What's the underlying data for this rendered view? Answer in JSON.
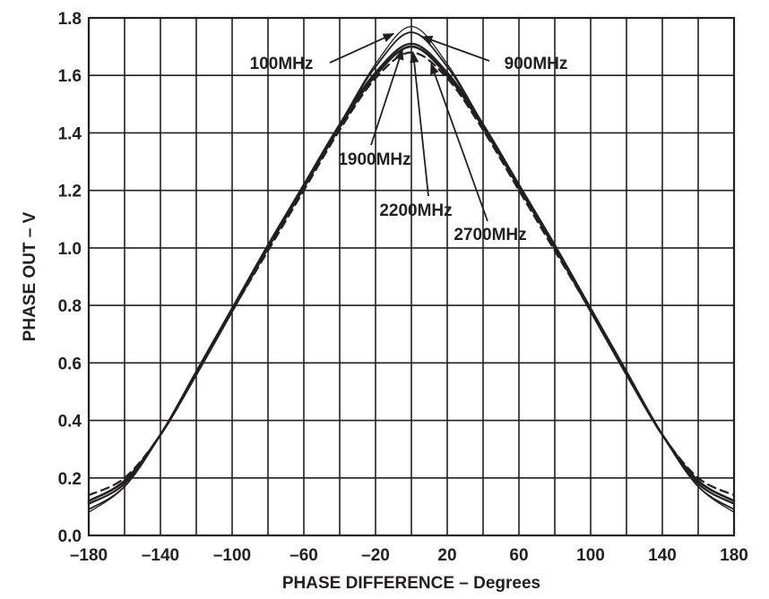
{
  "chart_data": {
    "type": "line",
    "title": "",
    "xlabel": "PHASE DIFFERENCE – Degrees",
    "ylabel": "PHASE OUT – V",
    "xlim": [
      -180,
      180
    ],
    "ylim": [
      0.0,
      1.8
    ],
    "x_ticks": [
      -180,
      -140,
      -100,
      -60,
      -20,
      20,
      60,
      100,
      140,
      180
    ],
    "x_tick_labels": [
      "–180",
      "–140",
      "–100",
      "–60",
      "–20",
      "20",
      "60",
      "100",
      "140",
      "180"
    ],
    "y_ticks": [
      0.0,
      0.2,
      0.4,
      0.6,
      0.8,
      1.0,
      1.2,
      1.4,
      1.6,
      1.8
    ],
    "y_tick_labels": [
      "0.0",
      "0.2",
      "0.4",
      "0.6",
      "0.8",
      "1.0",
      "1.2",
      "1.4",
      "1.6",
      "1.8"
    ],
    "grid": true,
    "x": [
      -180,
      -160,
      -140,
      -120,
      -100,
      -80,
      -60,
      -40,
      -20,
      0,
      20,
      40,
      60,
      80,
      100,
      120,
      140,
      160,
      180
    ],
    "series": [
      {
        "name": "100MHz",
        "values": [
          0.08,
          0.17,
          0.35,
          0.57,
          0.79,
          1.01,
          1.22,
          1.43,
          1.64,
          1.77,
          1.64,
          1.43,
          1.22,
          1.01,
          0.79,
          0.57,
          0.35,
          0.17,
          0.08
        ],
        "style": "solid"
      },
      {
        "name": "900MHz",
        "values": [
          0.09,
          0.17,
          0.35,
          0.57,
          0.79,
          1.01,
          1.22,
          1.43,
          1.63,
          1.75,
          1.63,
          1.43,
          1.22,
          1.01,
          0.79,
          0.57,
          0.35,
          0.17,
          0.09
        ],
        "style": "solid"
      },
      {
        "name": "1900MHz",
        "values": [
          0.11,
          0.18,
          0.35,
          0.57,
          0.79,
          1.01,
          1.22,
          1.43,
          1.61,
          1.71,
          1.61,
          1.43,
          1.22,
          1.01,
          0.79,
          0.57,
          0.35,
          0.18,
          0.11
        ],
        "style": "solid"
      },
      {
        "name": "2200MHz",
        "values": [
          0.12,
          0.19,
          0.35,
          0.56,
          0.78,
          1.0,
          1.21,
          1.42,
          1.6,
          1.7,
          1.6,
          1.42,
          1.21,
          1.0,
          0.78,
          0.56,
          0.35,
          0.19,
          0.12
        ],
        "style": "solid"
      },
      {
        "name": "2700MHz",
        "values": [
          0.14,
          0.2,
          0.35,
          0.56,
          0.78,
          0.99,
          1.2,
          1.41,
          1.59,
          1.68,
          1.59,
          1.41,
          1.2,
          0.99,
          0.78,
          0.56,
          0.35,
          0.2,
          0.14
        ],
        "style": "dashed"
      }
    ],
    "annotations": [
      {
        "text": "100MHz"
      },
      {
        "text": "900MHz"
      },
      {
        "text": "1900MHz"
      },
      {
        "text": "2200MHz"
      },
      {
        "text": "2700MHz"
      }
    ],
    "colors": {
      "ink": "#231f20",
      "background": "#ffffff"
    }
  }
}
